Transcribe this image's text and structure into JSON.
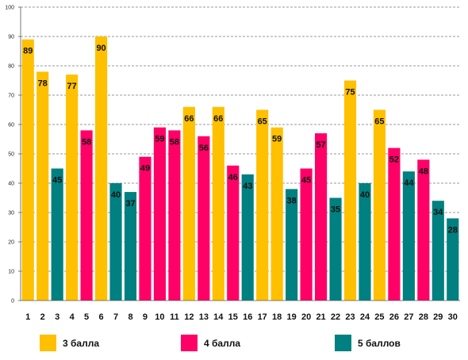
{
  "chart_data": {
    "type": "bar",
    "categories": [
      "1",
      "2",
      "3",
      "4",
      "5",
      "6",
      "7",
      "8",
      "9",
      "10",
      "11",
      "12",
      "13",
      "14",
      "15",
      "16",
      "17",
      "18",
      "19",
      "20",
      "21",
      "22",
      "23",
      "24",
      "25",
      "26",
      "27",
      "28",
      "29",
      "30"
    ],
    "values": [
      89,
      78,
      45,
      77,
      58,
      90,
      40,
      37,
      49,
      59,
      58,
      66,
      56,
      66,
      46,
      43,
      65,
      59,
      38,
      45,
      57,
      35,
      75,
      40,
      65,
      52,
      44,
      48,
      34,
      28
    ],
    "groups": [
      "g3",
      "g3",
      "g5",
      "g3",
      "g4",
      "g3",
      "g5",
      "g5",
      "g4",
      "g4",
      "g4",
      "g3",
      "g4",
      "g3",
      "g4",
      "g5",
      "g3",
      "g3",
      "g5",
      "g4",
      "g4",
      "g5",
      "g3",
      "g5",
      "g3",
      "g4",
      "g5",
      "g4",
      "g5",
      "g5"
    ],
    "legend": [
      {
        "key": "g3",
        "name": "3 балла",
        "color": "#FFC000"
      },
      {
        "key": "g4",
        "name": "4 балла",
        "color": "#FF0066"
      },
      {
        "key": "g5",
        "name": "5 баллов",
        "color": "#008080"
      }
    ],
    "yticks": [
      "0",
      "10",
      "20",
      "30",
      "40",
      "50",
      "60",
      "70",
      "80",
      "90",
      "100"
    ],
    "ylim": [
      0,
      100
    ],
    "grid": true,
    "legend_position": "bottom"
  }
}
